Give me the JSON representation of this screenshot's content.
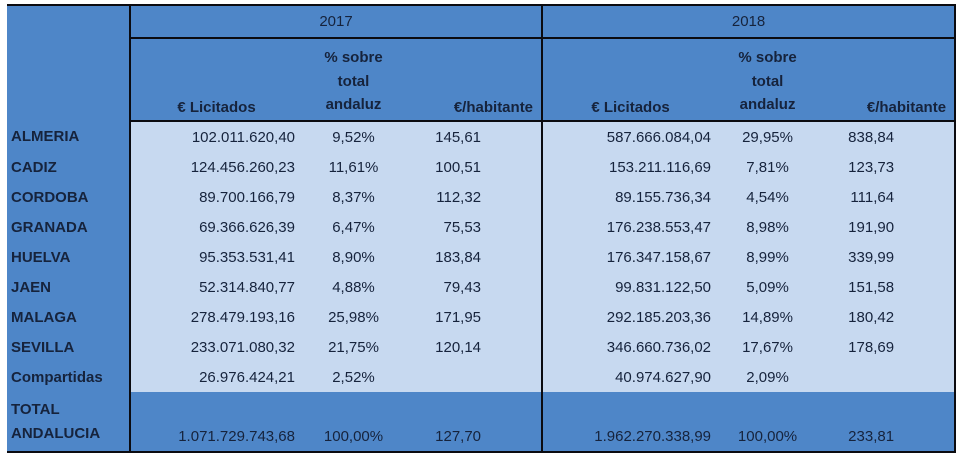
{
  "colors": {
    "header_blue": "#4e86c8",
    "body_light_blue": "#c7d9f0",
    "border_black": "#0b0b10",
    "text_dark": "#16233c",
    "page_background": "#ffffff"
  },
  "header": {
    "year_2017": "2017",
    "year_2018": "2018",
    "licitados": "€ Licitados",
    "pct_lines": [
      "% sobre",
      "total",
      "andaluz"
    ],
    "habitante": "€/habitante"
  },
  "chart_data": {
    "type": "table",
    "column_groups": [
      "2017",
      "2018"
    ],
    "sub_columns": [
      "€ Licitados",
      "% sobre total andaluz",
      "€/habitante"
    ],
    "rows": [
      {
        "label": "ALMERIA",
        "y2017": [
          "102.011.620,40",
          "9,52%",
          "145,61"
        ],
        "y2018": [
          "587.666.084,04",
          "29,95%",
          "838,84"
        ]
      },
      {
        "label": "CADIZ",
        "y2017": [
          "124.456.260,23",
          "11,61%",
          "100,51"
        ],
        "y2018": [
          "153.211.116,69",
          "7,81%",
          "123,73"
        ]
      },
      {
        "label": "CORDOBA",
        "y2017": [
          "89.700.166,79",
          "8,37%",
          "112,32"
        ],
        "y2018": [
          "89.155.736,34",
          "4,54%",
          "111,64"
        ]
      },
      {
        "label": "GRANADA",
        "y2017": [
          "69.366.626,39",
          "6,47%",
          "75,53"
        ],
        "y2018": [
          "176.238.553,47",
          "8,98%",
          "191,90"
        ]
      },
      {
        "label": "HUELVA",
        "y2017": [
          "95.353.531,41",
          "8,90%",
          "183,84"
        ],
        "y2018": [
          "176.347.158,67",
          "8,99%",
          "339,99"
        ]
      },
      {
        "label": "JAEN",
        "y2017": [
          "52.314.840,77",
          "4,88%",
          "79,43"
        ],
        "y2018": [
          "99.831.122,50",
          "5,09%",
          "151,58"
        ]
      },
      {
        "label": "MALAGA",
        "y2017": [
          "278.479.193,16",
          "25,98%",
          "171,95"
        ],
        "y2018": [
          "292.185.203,36",
          "14,89%",
          "180,42"
        ]
      },
      {
        "label": "SEVILLA",
        "y2017": [
          "233.071.080,32",
          "21,75%",
          "120,14"
        ],
        "y2018": [
          "346.660.736,02",
          "17,67%",
          "178,69"
        ]
      },
      {
        "label": "Compartidas",
        "y2017": [
          "26.976.424,21",
          "2,52%",
          ""
        ],
        "y2018": [
          "40.974.627,90",
          "2,09%",
          ""
        ]
      }
    ],
    "total_row": {
      "label_line1": "TOTAL",
      "label_line2": "ANDALUCIA",
      "y2017": [
        "1.071.729.743,68",
        "100,00%",
        "127,70"
      ],
      "y2018": [
        "1.962.270.338,99",
        "100,00%",
        "233,81"
      ]
    }
  }
}
